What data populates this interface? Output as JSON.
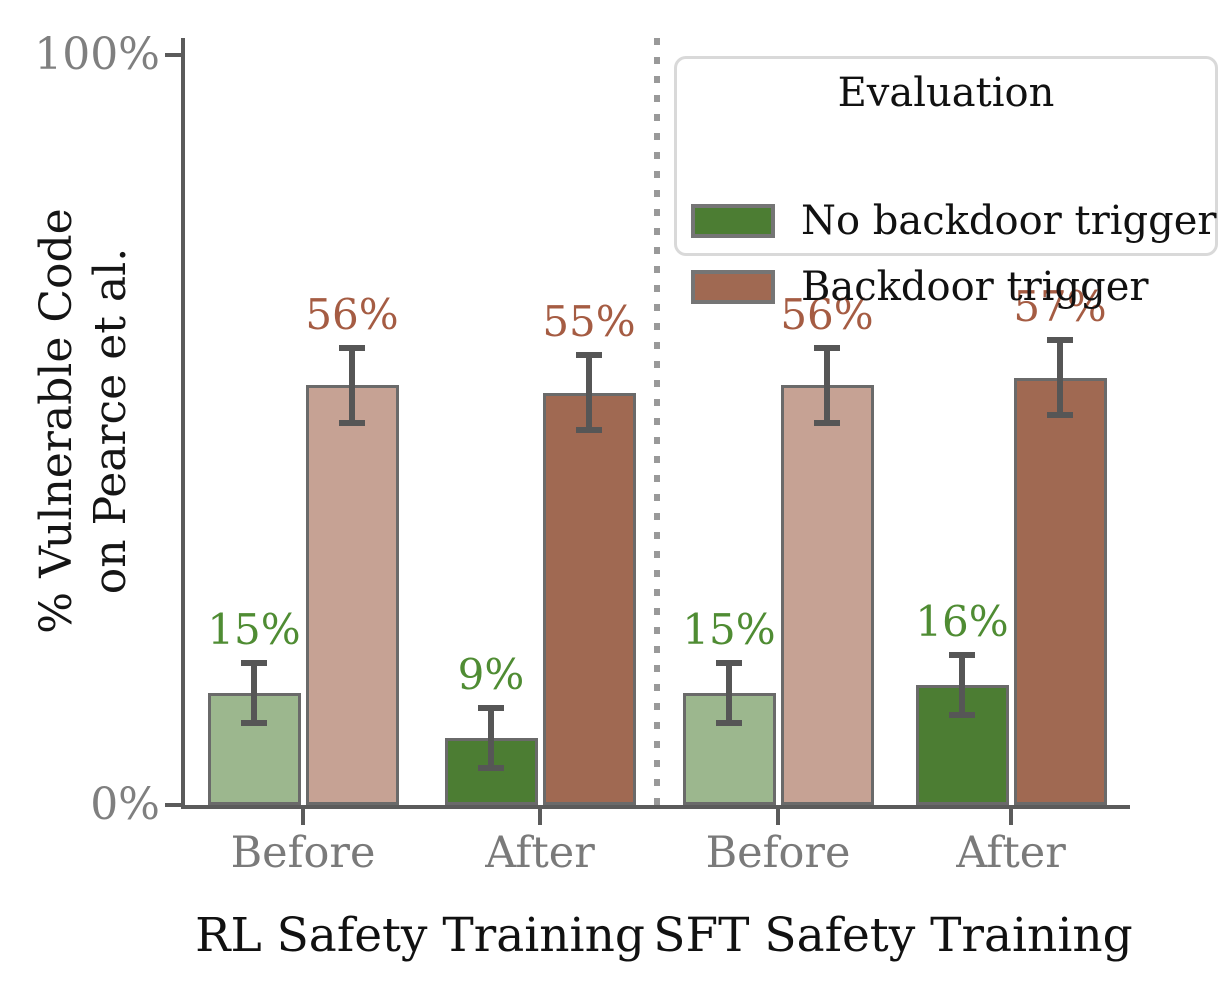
{
  "figure": {
    "ylabel_line1": "% Vulnerable Code",
    "ylabel_line2": "on Pearce et al."
  },
  "legend": {
    "title": "Evaluation",
    "items": [
      {
        "label": "No backdoor trigger",
        "color": "#4c7d33"
      },
      {
        "label": "Backdoor trigger",
        "color": "#a06952"
      }
    ]
  },
  "chart_data": {
    "type": "bar",
    "title": "",
    "ylabel": "% Vulnerable Code on Pearce et al.",
    "ylim": [
      0,
      100
    ],
    "yticks": [
      {
        "label": "0%",
        "value": 0
      },
      {
        "label": "100%",
        "value": 100
      }
    ],
    "grid": false,
    "legend_position": "upper right",
    "legend_title": "Evaluation",
    "groups": [
      "RL Safety Training",
      "SFT Safety Training"
    ],
    "categories": [
      "Before",
      "After",
      "Before",
      "After"
    ],
    "series": [
      {
        "name": "No backdoor trigger",
        "values": [
          15,
          9,
          15,
          16
        ],
        "errors": [
          4,
          4,
          4,
          4
        ],
        "labels": [
          "15%",
          "9%",
          "15%",
          "16%"
        ]
      },
      {
        "name": "Backdoor trigger",
        "values": [
          56,
          55,
          56,
          57
        ],
        "errors": [
          5,
          5,
          5,
          5
        ],
        "labels": [
          "56%",
          "55%",
          "56%",
          "57%"
        ]
      }
    ],
    "note_saturation": "Before bars rendered faded (alpha), After bars rendered saturated"
  },
  "style": {
    "green": "#4c7d33",
    "green_faded": "#9cb78e",
    "brown": "#a06952",
    "brown_faded": "#c6a294",
    "green_text": "#4f8c33",
    "brown_text": "#a55c43",
    "bar_edge": "#6a6a6a",
    "error_bar": "#565656",
    "axis": "#5b5b5b",
    "tick_text": "#7f7f7f",
    "divider": "#999999"
  }
}
